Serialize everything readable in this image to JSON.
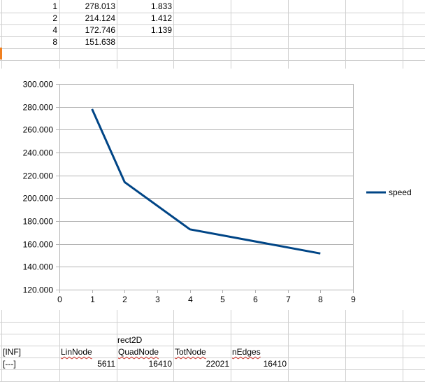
{
  "sheet": {
    "rows": [
      {
        "a": "1",
        "b": "278.013",
        "c": "1.833"
      },
      {
        "a": "2",
        "b": "214.124",
        "c": "1.412"
      },
      {
        "a": "4",
        "b": "172.746",
        "c": "1.139"
      },
      {
        "a": "8",
        "b": "151.638",
        "c": ""
      }
    ],
    "bottom": {
      "rect_label": "rect2D",
      "headers": [
        "[INF]",
        "LinNode",
        "QuadNode",
        "TotNode",
        "nEdges"
      ],
      "values": [
        "[---]",
        "5611",
        "16410",
        "22021",
        "16410"
      ]
    }
  },
  "chart_data": {
    "type": "line",
    "x": [
      1,
      2,
      4,
      8
    ],
    "series": [
      {
        "name": "speed",
        "values": [
          278.013,
          214.124,
          172.746,
          151.638
        ]
      }
    ],
    "xlim": [
      0,
      9
    ],
    "ylim": [
      120,
      300
    ],
    "x_ticks": [
      "0",
      "1",
      "2",
      "3",
      "4",
      "5",
      "6",
      "7",
      "8",
      "9"
    ],
    "y_ticks": [
      "120.000",
      "140.000",
      "160.000",
      "180.000",
      "200.000",
      "220.000",
      "240.000",
      "260.000",
      "280.000",
      "300.000"
    ],
    "grid": "horizontal",
    "legend_position": "right",
    "colors": {
      "series": "#004586",
      "gridline": "#b3b3b3",
      "axis": "#b3b3b3"
    }
  }
}
